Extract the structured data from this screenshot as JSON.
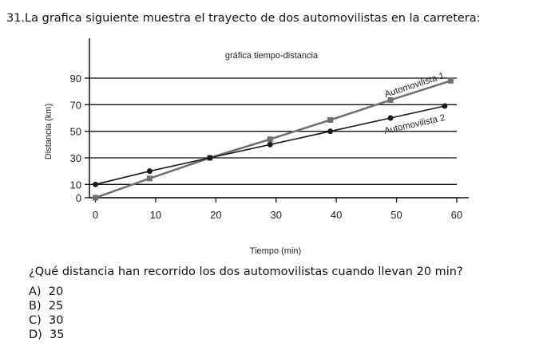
{
  "question_number_title": "31.La grafica siguiente muestra el trayecto de dos automovilistas en la carretera:",
  "chart_data": {
    "type": "line",
    "title": "gráfica tiempo-distancia",
    "x_label": "Tiempo (min)",
    "y_label": "Distancia (km)",
    "xlim": [
      -1,
      62
    ],
    "ylim": [
      0,
      120
    ],
    "xticks": [
      0,
      10,
      20,
      30,
      40,
      50,
      60
    ],
    "yticks": [
      0,
      10,
      30,
      50,
      70,
      90
    ],
    "grid": true,
    "series": [
      {
        "name": "Automovilista 1",
        "color": "#6f6f6f",
        "marker": "square",
        "x": [
          0,
          9,
          19,
          29,
          39,
          49,
          59
        ],
        "values": [
          0,
          14.5,
          30,
          44,
          58.5,
          73.5,
          88
        ]
      },
      {
        "name": "Automovilista 2",
        "color": "#1a1a1a",
        "marker": "circle",
        "x": [
          0,
          9,
          19,
          29,
          39,
          49,
          58
        ],
        "values": [
          10,
          20,
          30,
          40,
          50,
          60,
          69
        ]
      }
    ]
  },
  "question": "¿Qué distancia han recorrido los dos automovilistas cuando llevan 20 min?",
  "options": [
    "A)  20",
    "B)  25",
    "C)  30",
    "D)  35"
  ]
}
